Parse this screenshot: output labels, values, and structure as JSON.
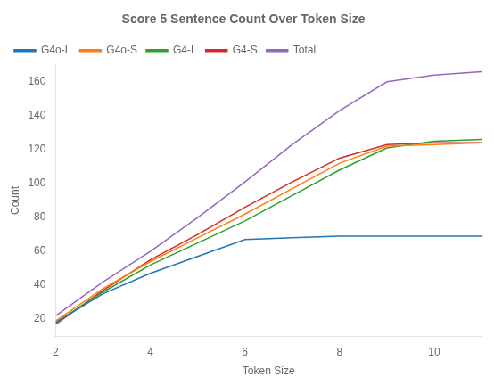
{
  "chart_data": {
    "type": "line",
    "title": "Score 5 Sentence Count Over Token Size",
    "xlabel": "Token Size",
    "ylabel": "Count",
    "x": [
      2,
      3,
      4,
      5,
      6,
      7,
      8,
      9,
      10,
      11
    ],
    "series": [
      {
        "name": "G4o-L",
        "color": "#1f77b4",
        "values": [
          18,
          35,
          47,
          57,
          67,
          68,
          69,
          69,
          69,
          69
        ]
      },
      {
        "name": "G4o-S",
        "color": "#ff7f0e",
        "values": [
          19,
          38,
          54,
          68,
          82,
          97,
          112,
          122,
          123,
          124
        ]
      },
      {
        "name": "G4-L",
        "color": "#2ca02c",
        "values": [
          18,
          36,
          52,
          65,
          78,
          93,
          108,
          121,
          125,
          126
        ]
      },
      {
        "name": "G4-S",
        "color": "#d62728",
        "values": [
          17,
          37,
          55,
          70,
          86,
          101,
          115,
          123,
          124,
          124
        ]
      },
      {
        "name": "Total",
        "color": "#9467bd",
        "values": [
          22,
          42,
          60,
          80,
          101,
          123,
          143,
          160,
          164,
          166
        ]
      }
    ],
    "xlim": [
      2,
      11
    ],
    "xticks": [
      2,
      4,
      6,
      8,
      10
    ],
    "ylim": [
      10,
      170
    ],
    "yticks": [
      20,
      40,
      60,
      80,
      100,
      120,
      140,
      160
    ],
    "grid": false,
    "legend": "upper left"
  }
}
